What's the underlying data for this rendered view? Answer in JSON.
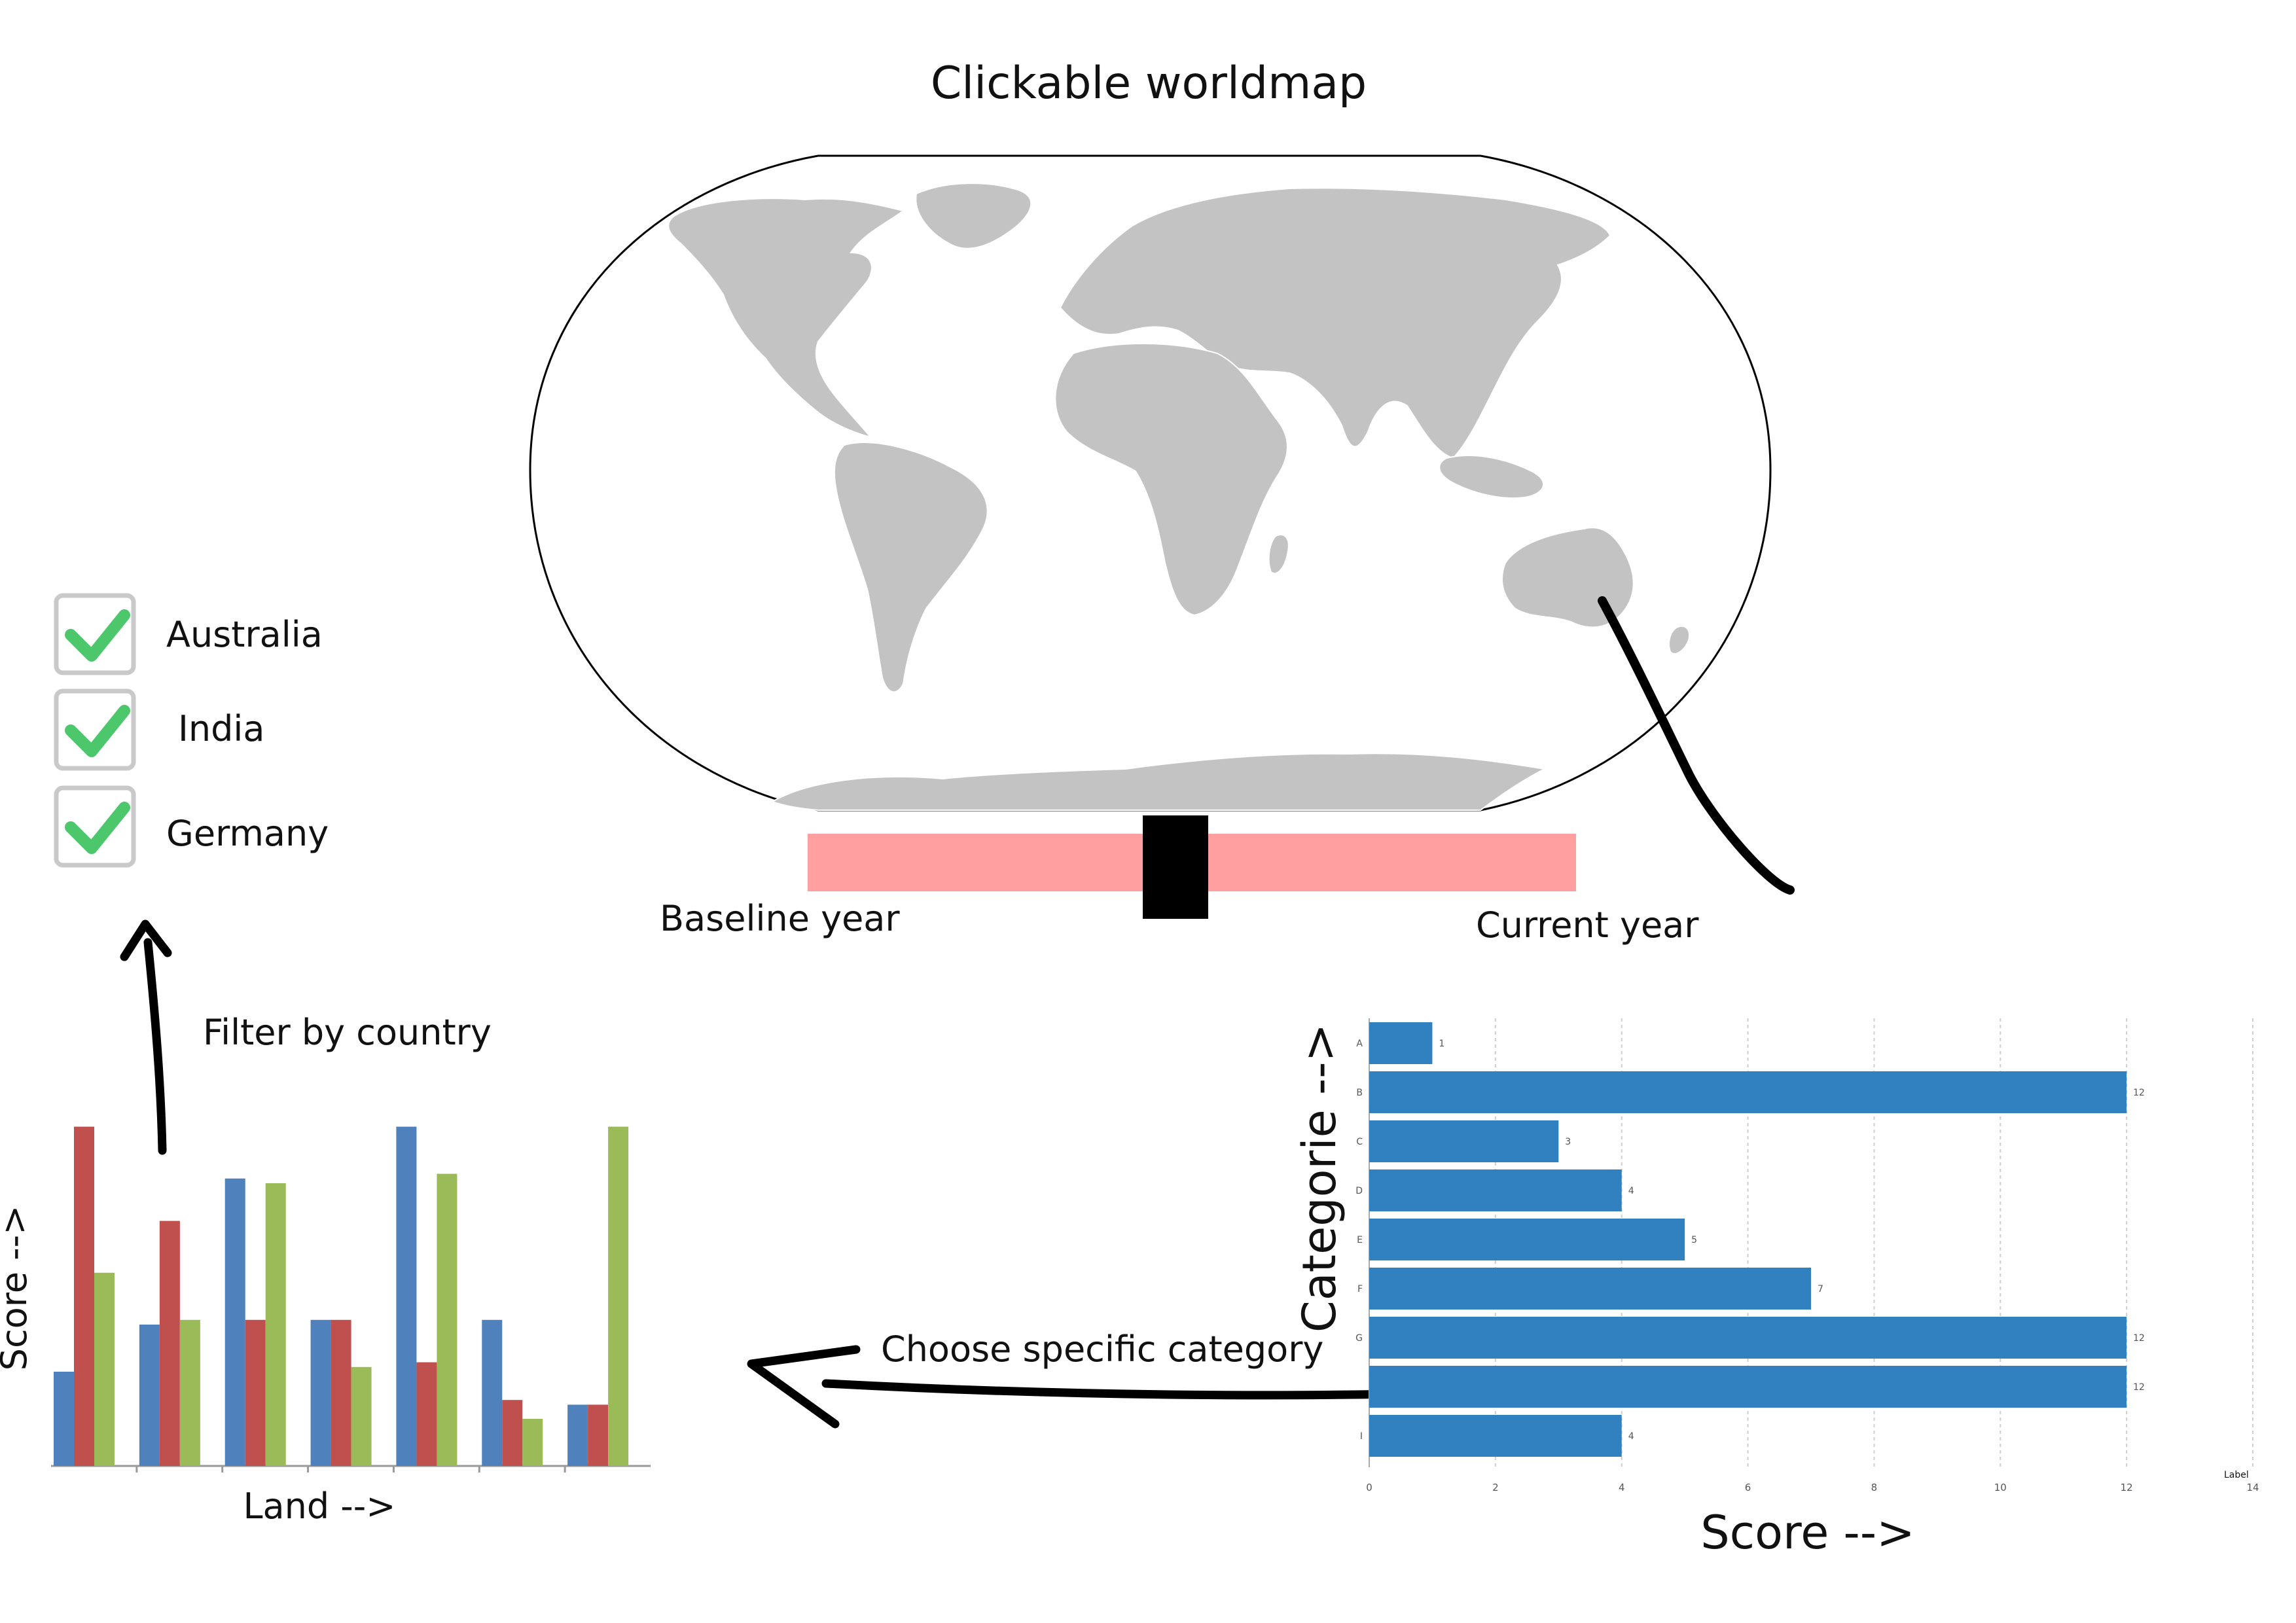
{
  "title": "Clickable worldmap",
  "map": {
    "fill": "#c3c3c3",
    "border": "#000000"
  },
  "slider": {
    "track_color": "#ff9f9f",
    "handle_color": "#000000",
    "left_label": "Baseline year",
    "right_label": "Current year"
  },
  "countries": {
    "items": [
      {
        "label": "Australia",
        "checked": true
      },
      {
        "label": "India",
        "checked": true
      },
      {
        "label": "Germany",
        "checked": true
      }
    ],
    "check_color": "#4cc76b",
    "box_border": "#c9c9c9"
  },
  "annotations": {
    "filter": "Filter by country",
    "choose": "Choose specific category"
  },
  "chart_data": [
    {
      "type": "bar",
      "orientation": "vertical",
      "title": "",
      "xlabel": "Land -->",
      "ylabel": "Score -->",
      "categories": [
        "",
        "",
        "",
        "",
        "",
        "",
        ""
      ],
      "series": [
        {
          "color": "#4f81bd",
          "values": [
            2,
            3,
            6.1,
            3.1,
            7.2,
            3.1,
            1.3
          ]
        },
        {
          "color": "#c0504d",
          "values": [
            7.2,
            5.2,
            3.1,
            3.1,
            2.2,
            1.4,
            1.3
          ]
        },
        {
          "color": "#9bbb59",
          "values": [
            4.1,
            3.1,
            6,
            2.1,
            6.2,
            1,
            7.2
          ]
        }
      ],
      "ylim": [
        0,
        7.5
      ],
      "grid": false,
      "legend": "none"
    },
    {
      "type": "bar",
      "orientation": "horizontal",
      "title": "",
      "xlabel": "Score -->",
      "ylabel": "Categorie -->",
      "categories": [
        "A",
        "B",
        "C",
        "D",
        "E",
        "F",
        "G",
        "",
        "I"
      ],
      "values": [
        1,
        12,
        3,
        4,
        5,
        7,
        12,
        12,
        4
      ],
      "xticks": [
        "0",
        "2",
        "4",
        "6",
        "8",
        "10",
        "12",
        "14"
      ],
      "xlim": [
        0,
        14
      ],
      "corner_label": "Label",
      "bar_color": "#3181c0",
      "grid": true,
      "legend": "none"
    }
  ]
}
